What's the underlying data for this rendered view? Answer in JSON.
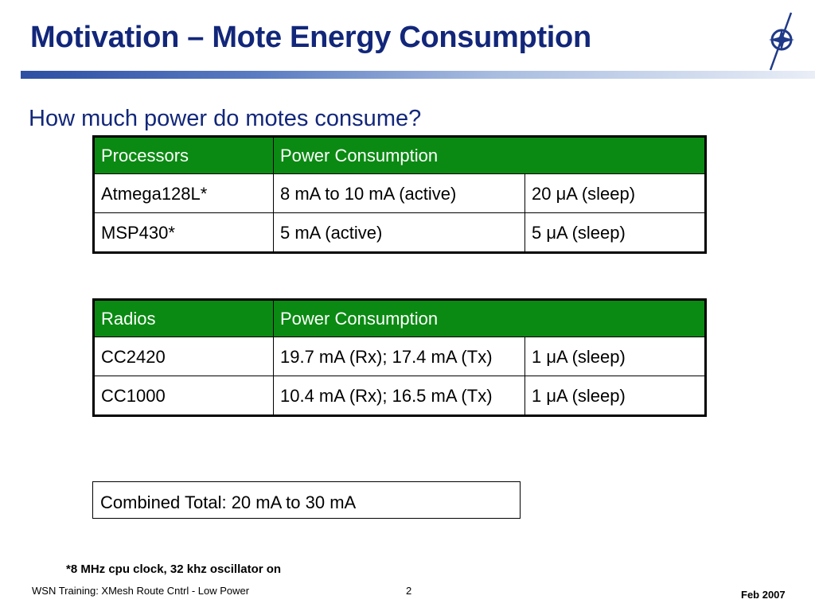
{
  "slide": {
    "title": "Motivation – Mote Energy Consumption",
    "subtitle": "How much power do motes consume?"
  },
  "processors_table": {
    "headers": [
      "Processors",
      "Power Consumption"
    ],
    "rows": [
      [
        "Atmega128L*",
        "8 mA to 10 mA (active)",
        "20 μA (sleep)"
      ],
      [
        "MSP430*",
        "5 mA (active)",
        "5 μA   (sleep)"
      ]
    ]
  },
  "radios_table": {
    "headers": [
      "Radios",
      "Power Consumption"
    ],
    "rows": [
      [
        "CC2420",
        "19.7 mA (Rx); 17.4 mA (Tx)",
        "1 μA (sleep)"
      ],
      [
        "CC1000",
        "10.4 mA (Rx); 16.5 mA (Tx)",
        "1 μA   (sleep)"
      ]
    ]
  },
  "total": "Combined Total: 20 mA to 30 mA",
  "footnote": "*8 MHz cpu clock, 32 khz oscillator on",
  "footer": {
    "left": "WSN Training: XMesh Route Cntrl - Low Power",
    "page_number": "2",
    "date": "Feb 2007"
  },
  "colors": {
    "title": "#12277a",
    "header_green": "#0a8a12"
  },
  "icons": {
    "logo": "compass-logo-icon"
  }
}
